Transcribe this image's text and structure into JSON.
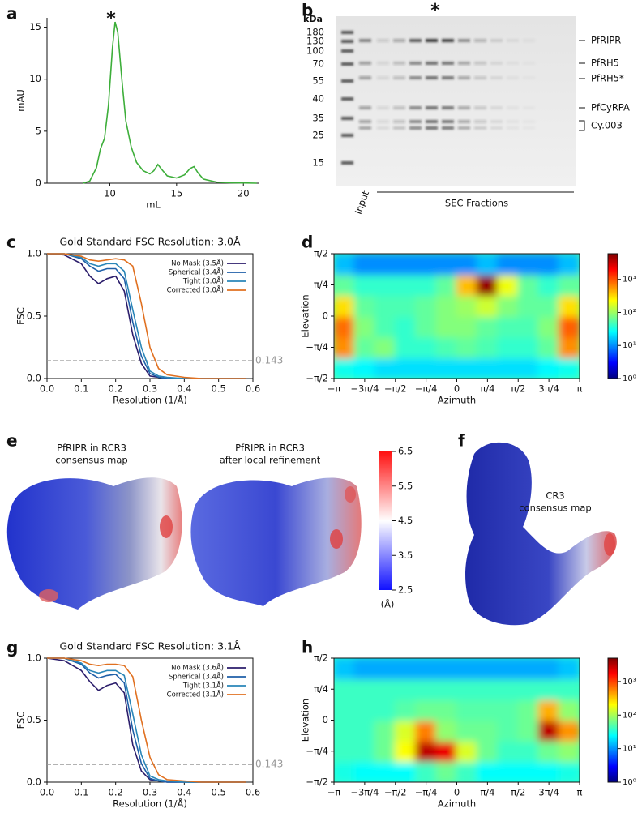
{
  "panel_labels": [
    "a",
    "b",
    "c",
    "d",
    "e",
    "f",
    "g",
    "h"
  ],
  "chart_data": [
    {
      "type": "line",
      "xlabel": "mL",
      "ylabel": "mAU",
      "annotation": "*",
      "x": [
        8,
        8.5,
        9,
        9.3,
        9.6,
        9.9,
        10.2,
        10.4,
        10.6,
        10.9,
        11.2,
        11.6,
        12,
        12.5,
        13,
        13.3,
        13.6,
        13.9,
        14.3,
        15,
        15.6,
        16,
        16.3,
        16.6,
        17,
        18,
        19,
        20,
        21
      ],
      "series": [
        {
          "color": "#3dae3a",
          "values": [
            0,
            0.2,
            1.5,
            3.3,
            4.3,
            7.5,
            13,
            15.5,
            14.5,
            10,
            6,
            3.5,
            2,
            1.2,
            0.9,
            1.2,
            1.8,
            1.3,
            0.7,
            0.5,
            0.8,
            1.4,
            1.6,
            1,
            0.4,
            0.1,
            0.05,
            0.02,
            0
          ]
        }
      ],
      "xlim": [
        5.3,
        21.2
      ],
      "ylim": [
        0,
        15.9
      ],
      "xticks": [
        10,
        15,
        20
      ],
      "yticks": [
        0,
        5,
        10,
        15
      ]
    },
    {
      "type": "line",
      "title": "Gold Standard FSC Resolution: 3.0Å",
      "xlabel": "Resolution (1/Å)",
      "ylabel": "FSC",
      "threshold": 0.143,
      "legend": "upper right",
      "x": [
        0,
        0.05,
        0.1,
        0.125,
        0.15,
        0.175,
        0.2,
        0.225,
        0.25,
        0.275,
        0.3,
        0.325,
        0.35,
        0.4,
        0.45,
        0.5,
        0.55,
        0.58
      ],
      "series": [
        {
          "name": "No Mask (3.5Å)",
          "color": "#2b1d6b",
          "values": [
            1,
            0.99,
            0.92,
            0.82,
            0.76,
            0.8,
            0.82,
            0.7,
            0.35,
            0.12,
            0.02,
            0.01,
            0,
            0,
            0,
            0,
            0,
            0
          ]
        },
        {
          "name": "Spherical (3.4Å)",
          "color": "#1f5fa8",
          "values": [
            1,
            1,
            0.96,
            0.9,
            0.86,
            0.88,
            0.88,
            0.8,
            0.45,
            0.18,
            0.04,
            0.01,
            0,
            0,
            0,
            0,
            0,
            0
          ]
        },
        {
          "name": "Tight (3.0Å)",
          "color": "#2a86b8",
          "values": [
            1,
            1,
            0.97,
            0.92,
            0.9,
            0.92,
            0.92,
            0.86,
            0.55,
            0.25,
            0.06,
            0.02,
            0.01,
            0,
            0,
            0,
            0,
            0
          ]
        },
        {
          "name": "Corrected (3.0Å)",
          "color": "#e07020",
          "values": [
            1,
            1,
            0.98,
            0.95,
            0.94,
            0.95,
            0.96,
            0.95,
            0.9,
            0.6,
            0.25,
            0.08,
            0.03,
            0.01,
            0,
            0,
            0,
            0
          ]
        }
      ],
      "xlim": [
        0,
        0.6
      ],
      "ylim": [
        0,
        1
      ],
      "xticks": [
        {
          "value": 0,
          "label": "0.0"
        },
        0.1,
        0.2,
        0.3,
        0.4,
        0.5,
        0.6
      ],
      "yticks": [
        {
          "value": 0,
          "label": "0.0"
        },
        0.5,
        {
          "value": 1,
          "label": "1.0"
        }
      ]
    },
    {
      "type": "heatmap",
      "xlabel": "Azimuth",
      "ylabel": "Elevation",
      "zlabel": "Number of Images",
      "zscale": "log",
      "xbins": [
        -3.1416,
        -2.618,
        -2.0944,
        -1.5708,
        -1.0472,
        -0.5236,
        0,
        0.5236,
        1.0472,
        1.5708,
        2.0944,
        2.618,
        3.1416
      ],
      "ybins": [
        -1.5708,
        -1.0472,
        -0.5236,
        0,
        0.5236,
        1.0472,
        1.5708
      ],
      "values": [
        [
          30,
          25,
          20,
          20,
          20,
          20,
          20,
          20,
          20,
          20,
          25,
          30
        ],
        [
          600,
          60,
          80,
          40,
          40,
          50,
          60,
          50,
          40,
          40,
          60,
          600
        ],
        [
          800,
          80,
          50,
          40,
          60,
          80,
          80,
          60,
          50,
          50,
          80,
          900
        ],
        [
          300,
          60,
          50,
          50,
          60,
          80,
          100,
          150,
          80,
          60,
          60,
          300
        ],
        [
          60,
          40,
          40,
          40,
          40,
          60,
          400,
          5000,
          200,
          60,
          40,
          60
        ],
        [
          15,
          10,
          10,
          10,
          10,
          10,
          10,
          15,
          10,
          10,
          10,
          15
        ]
      ],
      "xlim": [
        -3.1416,
        3.1416
      ],
      "ylim": [
        -1.5708,
        1.5708
      ],
      "zlim": [
        1,
        6000
      ],
      "xticks": [
        {
          "value": -3.1416,
          "label": "−π"
        },
        {
          "value": -2.3562,
          "label": "−3π/4"
        },
        {
          "value": -1.5708,
          "label": "−π/2"
        },
        {
          "value": -0.7854,
          "label": "−π/4"
        },
        0,
        {
          "value": 0.7854,
          "label": "π/4"
        },
        {
          "value": 1.5708,
          "label": "π/2"
        },
        {
          "value": 2.3562,
          "label": "3π/4"
        },
        {
          "value": 3.1416,
          "label": "π"
        }
      ],
      "yticks": [
        {
          "value": -1.5708,
          "label": "−π/2"
        },
        {
          "value": -0.7854,
          "label": "−π/4"
        },
        0,
        {
          "value": 0.7854,
          "label": "π/4"
        },
        {
          "value": 1.5708,
          "label": "π/2"
        }
      ],
      "zticks": [
        {
          "value": 1,
          "label": "10⁰"
        },
        {
          "value": 10,
          "label": "10¹"
        },
        {
          "value": 100,
          "label": "10²"
        },
        {
          "value": 1000,
          "label": "10³"
        }
      ]
    },
    {
      "type": "line",
      "title": "Gold Standard FSC Resolution: 3.1Å",
      "xlabel": "Resolution (1/Å)",
      "ylabel": "FSC",
      "threshold": 0.143,
      "legend": "upper right",
      "x": [
        0,
        0.05,
        0.1,
        0.125,
        0.15,
        0.175,
        0.2,
        0.225,
        0.25,
        0.275,
        0.3,
        0.325,
        0.35,
        0.4,
        0.45,
        0.5,
        0.55,
        0.58
      ],
      "series": [
        {
          "name": "No Mask (3.6Å)",
          "color": "#2b1d6b",
          "values": [
            1,
            0.98,
            0.9,
            0.81,
            0.74,
            0.78,
            0.8,
            0.72,
            0.3,
            0.09,
            0.02,
            0.01,
            0,
            0,
            0,
            0,
            0,
            0
          ]
        },
        {
          "name": "Spherical (3.4Å)",
          "color": "#1f5fa8",
          "values": [
            1,
            1,
            0.95,
            0.88,
            0.84,
            0.86,
            0.87,
            0.8,
            0.42,
            0.15,
            0.03,
            0.01,
            0,
            0,
            0,
            0,
            0,
            0
          ]
        },
        {
          "name": "Tight (3.1Å)",
          "color": "#2a86b8",
          "values": [
            1,
            1,
            0.96,
            0.9,
            0.88,
            0.9,
            0.9,
            0.86,
            0.55,
            0.22,
            0.05,
            0.02,
            0.01,
            0,
            0,
            0,
            0,
            0
          ]
        },
        {
          "name": "Corrected (3.1Å)",
          "color": "#e07020",
          "values": [
            1,
            1,
            0.98,
            0.95,
            0.94,
            0.95,
            0.95,
            0.94,
            0.85,
            0.5,
            0.2,
            0.06,
            0.02,
            0.01,
            0,
            0,
            0,
            0
          ]
        }
      ],
      "xlim": [
        0,
        0.6
      ],
      "ylim": [
        0,
        1
      ],
      "xticks": [
        {
          "value": 0,
          "label": "0.0"
        },
        0.1,
        0.2,
        0.3,
        0.4,
        0.5,
        0.6
      ],
      "yticks": [
        {
          "value": 0,
          "label": "0.0"
        },
        0.5,
        {
          "value": 1,
          "label": "1.0"
        }
      ]
    },
    {
      "type": "heatmap",
      "xlabel": "Azimuth",
      "ylabel": "Elevation",
      "zlabel": "Number of Images",
      "zscale": "log",
      "xbins": [
        -3.1416,
        -2.618,
        -2.0944,
        -1.5708,
        -1.0472,
        -0.5236,
        0,
        0.5236,
        1.0472,
        1.5708,
        2.0944,
        2.618,
        3.1416
      ],
      "ybins": [
        -1.5708,
        -1.0472,
        -0.5236,
        0,
        0.5236,
        1.0472,
        1.5708
      ],
      "values": [
        [
          30,
          25,
          25,
          25,
          40,
          60,
          40,
          25,
          25,
          25,
          25,
          30
        ],
        [
          40,
          40,
          60,
          200,
          3000,
          2000,
          150,
          60,
          40,
          40,
          60,
          80
        ],
        [
          40,
          40,
          60,
          150,
          600,
          80,
          60,
          60,
          50,
          60,
          3000,
          500
        ],
        [
          40,
          40,
          40,
          50,
          60,
          60,
          50,
          50,
          50,
          60,
          400,
          80
        ],
        [
          40,
          40,
          40,
          40,
          40,
          40,
          40,
          40,
          40,
          40,
          40,
          40
        ],
        [
          15,
          12,
          12,
          12,
          12,
          12,
          12,
          12,
          12,
          12,
          12,
          15
        ]
      ],
      "xlim": [
        -3.1416,
        3.1416
      ],
      "ylim": [
        -1.5708,
        1.5708
      ],
      "zlim": [
        1,
        5000
      ],
      "xticks": [
        {
          "value": -3.1416,
          "label": "−π"
        },
        {
          "value": -2.3562,
          "label": "−3π/4"
        },
        {
          "value": -1.5708,
          "label": "−π/2"
        },
        {
          "value": -0.7854,
          "label": "−π/4"
        },
        0,
        {
          "value": 0.7854,
          "label": "π/4"
        },
        {
          "value": 1.5708,
          "label": "π/2"
        },
        {
          "value": 2.3562,
          "label": "3π/4"
        },
        {
          "value": 3.1416,
          "label": "π"
        }
      ],
      "yticks": [
        {
          "value": -1.5708,
          "label": "−π/2"
        },
        {
          "value": -0.7854,
          "label": "−π/4"
        },
        0,
        {
          "value": 0.7854,
          "label": "π/4"
        },
        {
          "value": 1.5708,
          "label": "π/2"
        }
      ],
      "zticks": [
        {
          "value": 1,
          "label": "10⁰"
        },
        {
          "value": 10,
          "label": "10¹"
        },
        {
          "value": 100,
          "label": "10²"
        },
        {
          "value": 1000,
          "label": "10³"
        }
      ]
    }
  ],
  "gel": {
    "unit": "kDa",
    "star": "*",
    "markers": [
      "180",
      "130",
      "100",
      "70",
      "55",
      "40",
      "35",
      "25",
      "15"
    ],
    "proteins": [
      "PfRIPR",
      "PfRH5",
      "PfRH5*",
      "PfCyRPA",
      "Cy.003"
    ],
    "input": "Input",
    "fractions": "SEC Fractions"
  },
  "maps": {
    "left_title": [
      "PfRIPR in RCR3",
      "consensus map"
    ],
    "right_title": [
      "PfRIPR in RCR3",
      "after local refinement"
    ],
    "cr3_title": [
      "CR3",
      "consensus map"
    ],
    "colorbar": {
      "lim": [
        2.5,
        6.5
      ],
      "ticks": [
        2.5,
        3.5,
        4.5,
        5.5,
        6.5
      ],
      "unit": "(Å)"
    }
  }
}
